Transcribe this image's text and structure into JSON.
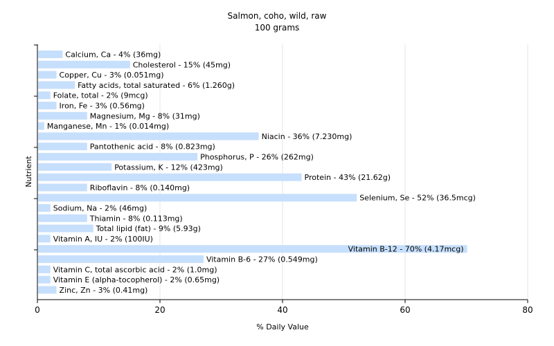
{
  "chart_data": {
    "type": "bar",
    "orientation": "horizontal",
    "title": "Salmon, coho, wild, raw",
    "subtitle": "100 grams",
    "xlabel": "% Daily Value",
    "ylabel": "Nutrient",
    "xlim": [
      0,
      80
    ],
    "xticks": [
      "0",
      "20",
      "40",
      "60",
      "80"
    ],
    "grid": true,
    "bar_color": "#c6dffc",
    "grid_color": "#e6e6e6",
    "categories": [
      "Calcium, Ca",
      "Cholesterol",
      "Copper, Cu",
      "Fatty acids, total saturated",
      "Folate, total",
      "Iron, Fe",
      "Magnesium, Mg",
      "Manganese, Mn",
      "Niacin",
      "Pantothenic acid",
      "Phosphorus, P",
      "Potassium, K",
      "Protein",
      "Riboflavin",
      "Selenium, Se",
      "Sodium, Na",
      "Thiamin",
      "Total lipid (fat)",
      "Vitamin A, IU",
      "Vitamin B-12",
      "Vitamin B-6",
      "Vitamin C, total ascorbic acid",
      "Vitamin E (alpha-tocopherol)",
      "Zinc, Zn"
    ],
    "values": [
      4,
      15,
      3,
      6,
      2,
      3,
      8,
      1,
      36,
      8,
      26,
      12,
      43,
      8,
      52,
      2,
      8,
      9,
      2,
      70,
      27,
      2,
      2,
      3
    ],
    "labels": [
      "Calcium, Ca - 4% (36mg)",
      "Cholesterol - 15% (45mg)",
      "Copper, Cu - 3% (0.051mg)",
      "Fatty acids, total saturated - 6% (1.260g)",
      "Folate, total - 2% (9mcg)",
      "Iron, Fe - 3% (0.56mg)",
      "Magnesium, Mg - 8% (31mg)",
      "Manganese, Mn - 1% (0.014mg)",
      "Niacin - 36% (7.230mg)",
      "Pantothenic acid - 8% (0.823mg)",
      "Phosphorus, P - 26% (262mg)",
      "Potassium, K - 12% (423mg)",
      "Protein - 43% (21.62g)",
      "Riboflavin - 8% (0.140mg)",
      "Selenium, Se - 52% (36.5mcg)",
      "Sodium, Na - 2% (46mg)",
      "Thiamin - 8% (0.113mg)",
      "Total lipid (fat) - 9% (5.93g)",
      "Vitamin A, IU - 2% (100IU)",
      "Vitamin B-12 - 70% (4.17mcg)",
      "Vitamin B-6 - 27% (0.549mg)",
      "Vitamin C, total ascorbic acid - 2% (1.0mg)",
      "Vitamin E (alpha-tocopherol) - 2% (0.65mg)",
      "Zinc, Zn - 3% (0.41mg)"
    ]
  }
}
